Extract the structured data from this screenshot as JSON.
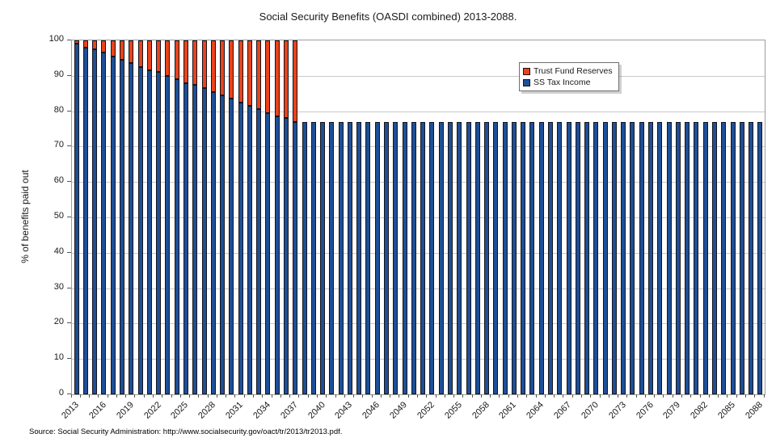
{
  "source_note": "Source: Social Security Administration: http://www.socialsecurity.gov/oact/tr/2013/tr2013.pdf.",
  "chart_data": {
    "type": "bar",
    "stacked": true,
    "title": "Social Security Benefits (OASDI combined) 2013-2088.",
    "xlabel": "",
    "ylabel": "% of benefits paid out",
    "ylim": [
      0,
      100
    ],
    "ytick_step": 10,
    "grid": true,
    "legend_position": "top-right",
    "x": [
      2013,
      2014,
      2015,
      2016,
      2017,
      2018,
      2019,
      2020,
      2021,
      2022,
      2023,
      2024,
      2025,
      2026,
      2027,
      2028,
      2029,
      2030,
      2031,
      2032,
      2033,
      2034,
      2035,
      2036,
      2037,
      2038,
      2039,
      2040,
      2041,
      2042,
      2043,
      2044,
      2045,
      2046,
      2047,
      2048,
      2049,
      2050,
      2051,
      2052,
      2053,
      2054,
      2055,
      2056,
      2057,
      2058,
      2059,
      2060,
      2061,
      2062,
      2063,
      2064,
      2065,
      2066,
      2067,
      2068,
      2069,
      2070,
      2071,
      2072,
      2073,
      2074,
      2075,
      2076,
      2077,
      2078,
      2079,
      2080,
      2081,
      2082,
      2083,
      2084,
      2085,
      2086,
      2087,
      2088
    ],
    "xtick_labeled_years": [
      2013,
      2016,
      2019,
      2022,
      2025,
      2028,
      2031,
      2034,
      2037,
      2040,
      2043,
      2046,
      2049,
      2052,
      2055,
      2058,
      2061,
      2064,
      2067,
      2070,
      2073,
      2076,
      2079,
      2082,
      2085,
      2088
    ],
    "series": [
      {
        "name": "SS Tax Income",
        "color": "#1e4f97",
        "values": [
          99,
          98,
          97.5,
          96.5,
          95.5,
          94.5,
          93.5,
          92.5,
          91.5,
          91,
          90,
          89,
          88,
          87.5,
          86.5,
          85.5,
          84.5,
          83.5,
          82.5,
          81.5,
          80.5,
          79.5,
          78.5,
          78,
          77,
          77,
          77,
          77,
          77,
          77,
          77,
          77,
          77,
          77,
          77,
          77,
          77,
          77,
          77,
          77,
          77,
          77,
          77,
          77,
          77,
          77,
          77,
          77,
          77,
          77,
          77,
          77,
          77,
          77,
          77,
          77,
          77,
          77,
          77,
          77,
          77,
          77,
          77,
          77,
          77,
          77,
          77,
          77,
          77,
          77,
          77,
          77,
          77,
          77,
          77,
          77
        ]
      },
      {
        "name": "Trust Fund Reserves",
        "color": "#ea431d",
        "values": [
          1,
          2,
          2.5,
          3.5,
          4.5,
          5.5,
          6.5,
          7.5,
          8.5,
          9,
          10,
          11,
          12,
          12.5,
          13.5,
          14.5,
          15.5,
          16.5,
          17.5,
          18.5,
          19.5,
          20.5,
          21.5,
          22,
          23,
          0,
          0,
          0,
          0,
          0,
          0,
          0,
          0,
          0,
          0,
          0,
          0,
          0,
          0,
          0,
          0,
          0,
          0,
          0,
          0,
          0,
          0,
          0,
          0,
          0,
          0,
          0,
          0,
          0,
          0,
          0,
          0,
          0,
          0,
          0,
          0,
          0,
          0,
          0,
          0,
          0,
          0,
          0,
          0,
          0,
          0,
          0,
          0,
          0,
          0,
          0
        ]
      }
    ],
    "legend": {
      "items": [
        {
          "label": "Trust Fund Reserves",
          "color": "#ea431d"
        },
        {
          "label": "SS Tax Income",
          "color": "#1e4f97"
        }
      ]
    }
  }
}
